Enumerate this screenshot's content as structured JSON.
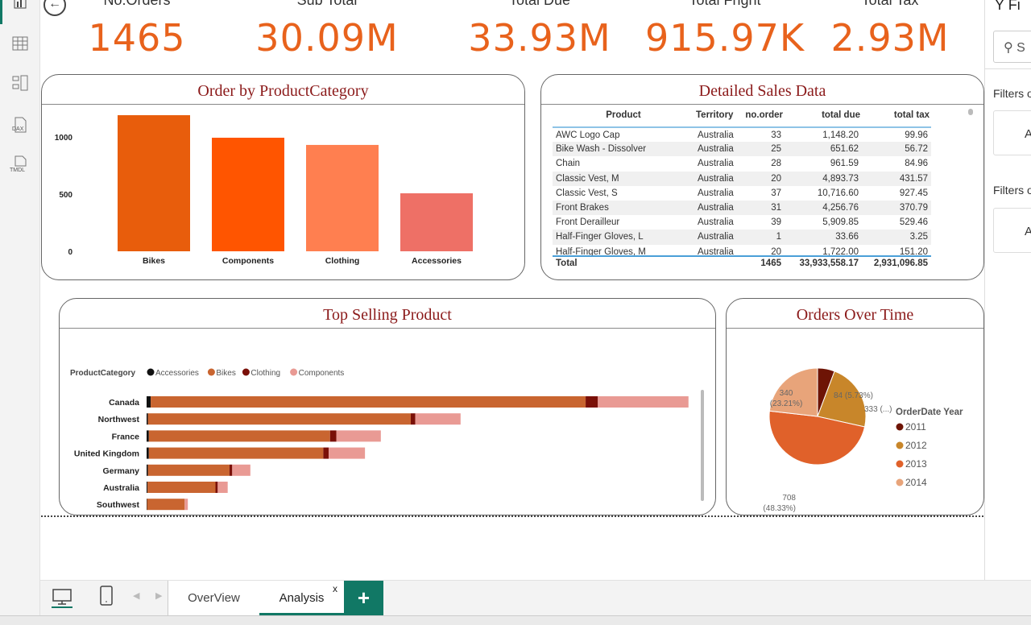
{
  "kpis": [
    {
      "title": "No.Orders",
      "value": "1465"
    },
    {
      "title": "Sub Total",
      "value": "30.09M"
    },
    {
      "title": "Total Due",
      "value": "33.93M"
    },
    {
      "title": "Total Fright",
      "value": "915.97K"
    },
    {
      "title": "Total Tax",
      "value": "2.93M"
    }
  ],
  "sidebar": {
    "icons": [
      "report-icon",
      "table-icon",
      "model-icon",
      "dax-icon",
      "tmdl-icon"
    ],
    "dax": "DAX",
    "tmdl": "TMDL"
  },
  "filters": {
    "title": "Fi",
    "search_placeholder": "S",
    "section1": "Filters o",
    "card1": "A",
    "section2": "Filters o",
    "card2": "A"
  },
  "table": {
    "title": "Detailed Sales Data",
    "columns": [
      "Product",
      "Territory",
      "no.order",
      "total due",
      "total tax"
    ],
    "rows": [
      [
        "AWC Logo Cap",
        "Australia",
        "33",
        "1,148.20",
        "99.96"
      ],
      [
        "Bike Wash - Dissolver",
        "Australia",
        "25",
        "651.62",
        "56.72"
      ],
      [
        "Chain",
        "Australia",
        "28",
        "961.59",
        "84.96"
      ],
      [
        "Classic Vest, M",
        "Australia",
        "20",
        "4,893.73",
        "431.57"
      ],
      [
        "Classic Vest, S",
        "Australia",
        "37",
        "10,716.60",
        "927.45"
      ],
      [
        "Front Brakes",
        "Australia",
        "31",
        "4,256.76",
        "370.79"
      ],
      [
        "Front Derailleur",
        "Australia",
        "39",
        "5,909.85",
        "529.46"
      ],
      [
        "Half-Finger Gloves, L",
        "Australia",
        "1",
        "33.66",
        "3.25"
      ],
      [
        "Half-Finger Gloves, M",
        "Australia",
        "20",
        "1,722.00",
        "151.20"
      ]
    ],
    "total": [
      "Total",
      "",
      "1465",
      "33,933,558.17",
      "2,931,096.85"
    ]
  },
  "tabs": {
    "pages": [
      "OverView",
      "Analysis"
    ],
    "active": "Analysis",
    "close": "x",
    "add": "+"
  },
  "chart_data": [
    {
      "type": "bar",
      "title": "Order by ProductCategory",
      "categories": [
        "Bikes",
        "Components",
        "Clothing",
        "Accessories"
      ],
      "values": [
        1190,
        993,
        930,
        507
      ],
      "yticks": [
        "0",
        "500",
        "1000"
      ],
      "ylim": [
        0,
        1300
      ],
      "colors": [
        "#e85d0c",
        "#ff5500",
        "#ff7f50",
        "#ee7066"
      ]
    },
    {
      "type": "bar",
      "orientation": "horizontal",
      "stacked": true,
      "title": "Top Selling Product",
      "legend_title": "ProductCategory",
      "legend_position": "top-left",
      "categories": [
        "Canada",
        "Northwest",
        "France",
        "United Kingdom",
        "Germany",
        "Australia",
        "Southwest"
      ],
      "series": [
        {
          "name": "Accessories",
          "color": "#111111",
          "values": [
            0.09,
            0.03,
            0.05,
            0.05,
            0.03,
            0.02,
            0.01
          ]
        },
        {
          "name": "Bikes",
          "color": "#c96530",
          "values": [
            9.6,
            5.8,
            4.0,
            3.85,
            1.8,
            1.5,
            0.83
          ]
        },
        {
          "name": "Clothing",
          "color": "#7a1008",
          "values": [
            0.27,
            0.1,
            0.14,
            0.12,
            0.06,
            0.05,
            0.0
          ]
        },
        {
          "name": "Components",
          "color": "#e99a94",
          "values": [
            2.0,
            1.0,
            0.98,
            0.8,
            0.4,
            0.22,
            0.07
          ]
        }
      ],
      "xticks": [
        "0M",
        "2M",
        "4M",
        "6M",
        "8M",
        "10M",
        "12M"
      ],
      "xlim": [
        0,
        12
      ]
    },
    {
      "type": "pie",
      "title": "Orders Over Time",
      "legend_title": "OrderDate Year",
      "legend_position": "right",
      "labels": [
        "2011",
        "2012",
        "2013",
        "2014"
      ],
      "values": [
        84,
        333,
        708,
        340
      ],
      "data_labels": [
        "84 (5.73%)",
        "333 (...)",
        "708",
        "340"
      ],
      "pct_labels": [
        "",
        "",
        "(48.33%)",
        "(23.21%)"
      ],
      "colors": [
        "#6e1405",
        "#c8862a",
        "#e0612a",
        "#e8a47a"
      ]
    }
  ]
}
